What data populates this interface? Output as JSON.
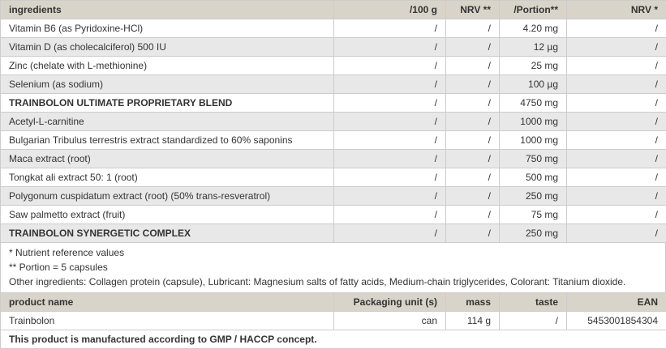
{
  "ingredients_table": {
    "headers": [
      "ingredients",
      "/100 g",
      "NRV **",
      "/Portion**",
      "NRV *"
    ],
    "rows": [
      {
        "name": "Vitamin B6 (as Pyridoxine-HCl)",
        "per100": "/",
        "nrv2": "/",
        "portion": "4.20 mg",
        "nrv": "/"
      },
      {
        "name": "Vitamin D (as cholecalciferol) 500 IU",
        "per100": "/",
        "nrv2": "/",
        "portion": "12 µg",
        "nrv": "/"
      },
      {
        "name": "Zinc (chelate with L-methionine)",
        "per100": "/",
        "nrv2": "/",
        "portion": "25 mg",
        "nrv": "/"
      },
      {
        "name": "Selenium (as sodium)",
        "per100": "/",
        "nrv2": "/",
        "portion": "100 µg",
        "nrv": "/"
      },
      {
        "name": "TRAINBOLON ULTIMATE PROPRIETARY BLEND",
        "per100": "/",
        "nrv2": "/",
        "portion": "4750 mg",
        "nrv": "/",
        "bold": true
      },
      {
        "name": "Acetyl-L-carnitine",
        "per100": "/",
        "nrv2": "/",
        "portion": "1000 mg",
        "nrv": "/"
      },
      {
        "name": "Bulgarian Tribulus terrestris extract standardized to 60% saponins",
        "per100": "/",
        "nrv2": "/",
        "portion": "1000 mg",
        "nrv": "/"
      },
      {
        "name": "Maca extract (root)",
        "per100": "/",
        "nrv2": "/",
        "portion": "750 mg",
        "nrv": "/"
      },
      {
        "name": "Tongkat ali extract 50: 1 (root)",
        "per100": "/",
        "nrv2": "/",
        "portion": "500 mg",
        "nrv": "/"
      },
      {
        "name": "Polygonum cuspidatum extract (root) (50% trans-resveratrol)",
        "per100": "/",
        "nrv2": "/",
        "portion": "250 mg",
        "nrv": "/"
      },
      {
        "name": "Saw palmetto extract (fruit)",
        "per100": "/",
        "nrv2": "/",
        "portion": "75 mg",
        "nrv": "/"
      },
      {
        "name": "TRAINBOLON SYNERGETIC COMPLEX",
        "per100": "/",
        "nrv2": "/",
        "portion": "250 mg",
        "nrv": "/",
        "bold": true
      }
    ]
  },
  "notes": [
    "* Nutrient reference values",
    "** Portion = 5 capsules",
    "Other ingredients: Collagen protein (capsule), Lubricant: Magnesium salts of fatty acids, Medium-chain triglycerides, Colorant: Titanium dioxide."
  ],
  "product_table": {
    "headers": [
      "product name",
      "Packaging unit (s)",
      "mass",
      "taste",
      "EAN"
    ],
    "row": [
      "Trainbolon",
      "can",
      "114 g",
      "/",
      "5453001854304"
    ],
    "footer": "This product is manufactured according to GMP / HACCP concept."
  }
}
